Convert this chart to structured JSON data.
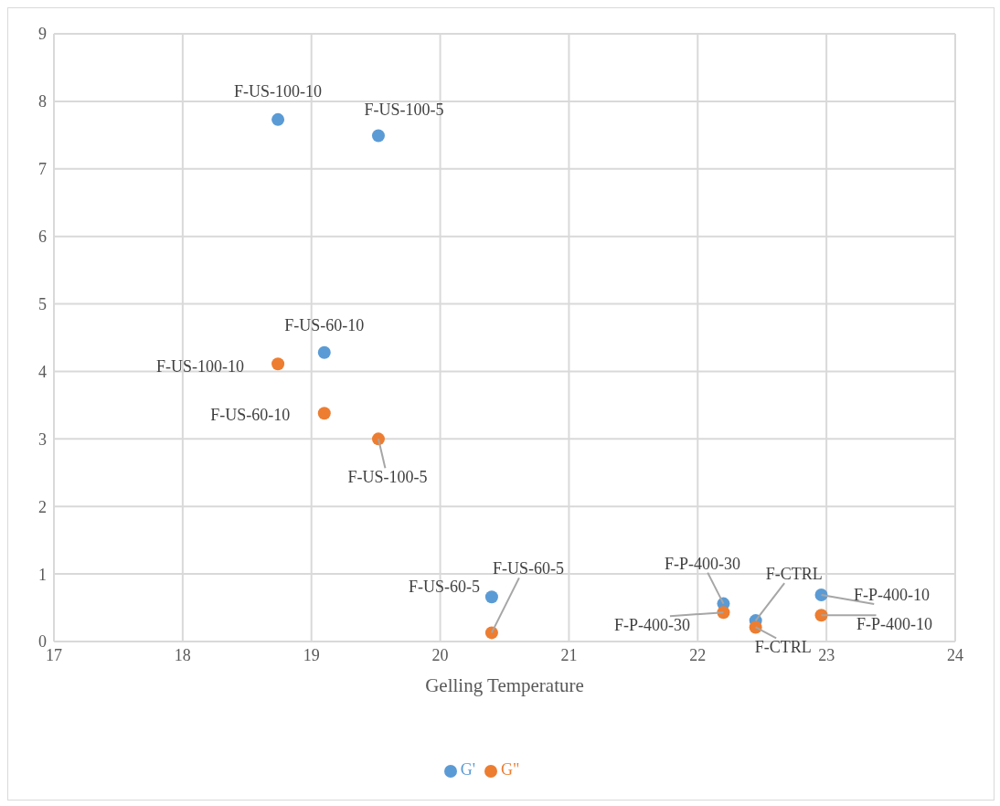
{
  "chart_data": {
    "type": "scatter",
    "xlabel": "Gelling Temperature",
    "x": [
      18.74,
      19.52,
      19.1,
      20.4,
      22.2,
      22.45,
      22.96
    ],
    "series": [
      {
        "name": "G'",
        "color": "#5b9bd5",
        "values": [
          7.73,
          7.49,
          4.28,
          0.66,
          0.56,
          0.31,
          0.69
        ]
      },
      {
        "name": "G\"",
        "color": "#ed7d31",
        "values": [
          4.11,
          3.0,
          3.38,
          0.13,
          0.43,
          0.21,
          0.39
        ]
      }
    ],
    "xlim": [
      17,
      24
    ],
    "xticks": [
      17,
      18,
      19,
      20,
      21,
      22,
      23,
      24
    ],
    "ylim": [
      0,
      9
    ],
    "yticks": [
      0,
      1,
      2,
      3,
      4,
      5,
      6,
      7,
      8,
      9
    ],
    "grid": true,
    "legend": "bottom",
    "marker": "circle",
    "annotations": [
      {
        "text": "F-US-100-10",
        "x": 18.74,
        "y": 7.73
      },
      {
        "text": "F-US-100-5",
        "x": 19.52,
        "y": 7.49
      },
      {
        "text": "F-US-60-10",
        "x": 19.1,
        "y": 4.28
      },
      {
        "text": "F-US-60-5",
        "x": 20.4,
        "y": 0.66
      },
      {
        "text": "F-P-400-30",
        "x": 22.2,
        "y": 0.56
      },
      {
        "text": "F-CTRL",
        "x": 22.45,
        "y": 0.31
      },
      {
        "text": "F-P-400-10",
        "x": 22.96,
        "y": 0.69
      },
      {
        "text": "F-US-100-10",
        "x": 18.74,
        "y": 4.11
      },
      {
        "text": "F-US-100-5",
        "x": 19.52,
        "y": 3.0
      },
      {
        "text": "F-US-60-10",
        "x": 19.1,
        "y": 3.38
      },
      {
        "text": "F-US-60-5",
        "x": 20.4,
        "y": 0.13
      },
      {
        "text": "F-P-400-30",
        "x": 22.2,
        "y": 0.43
      },
      {
        "text": "F-CTRL",
        "x": 22.45,
        "y": 0.21
      },
      {
        "text": "F-P-400-10",
        "x": 22.96,
        "y": 0.39
      }
    ]
  }
}
